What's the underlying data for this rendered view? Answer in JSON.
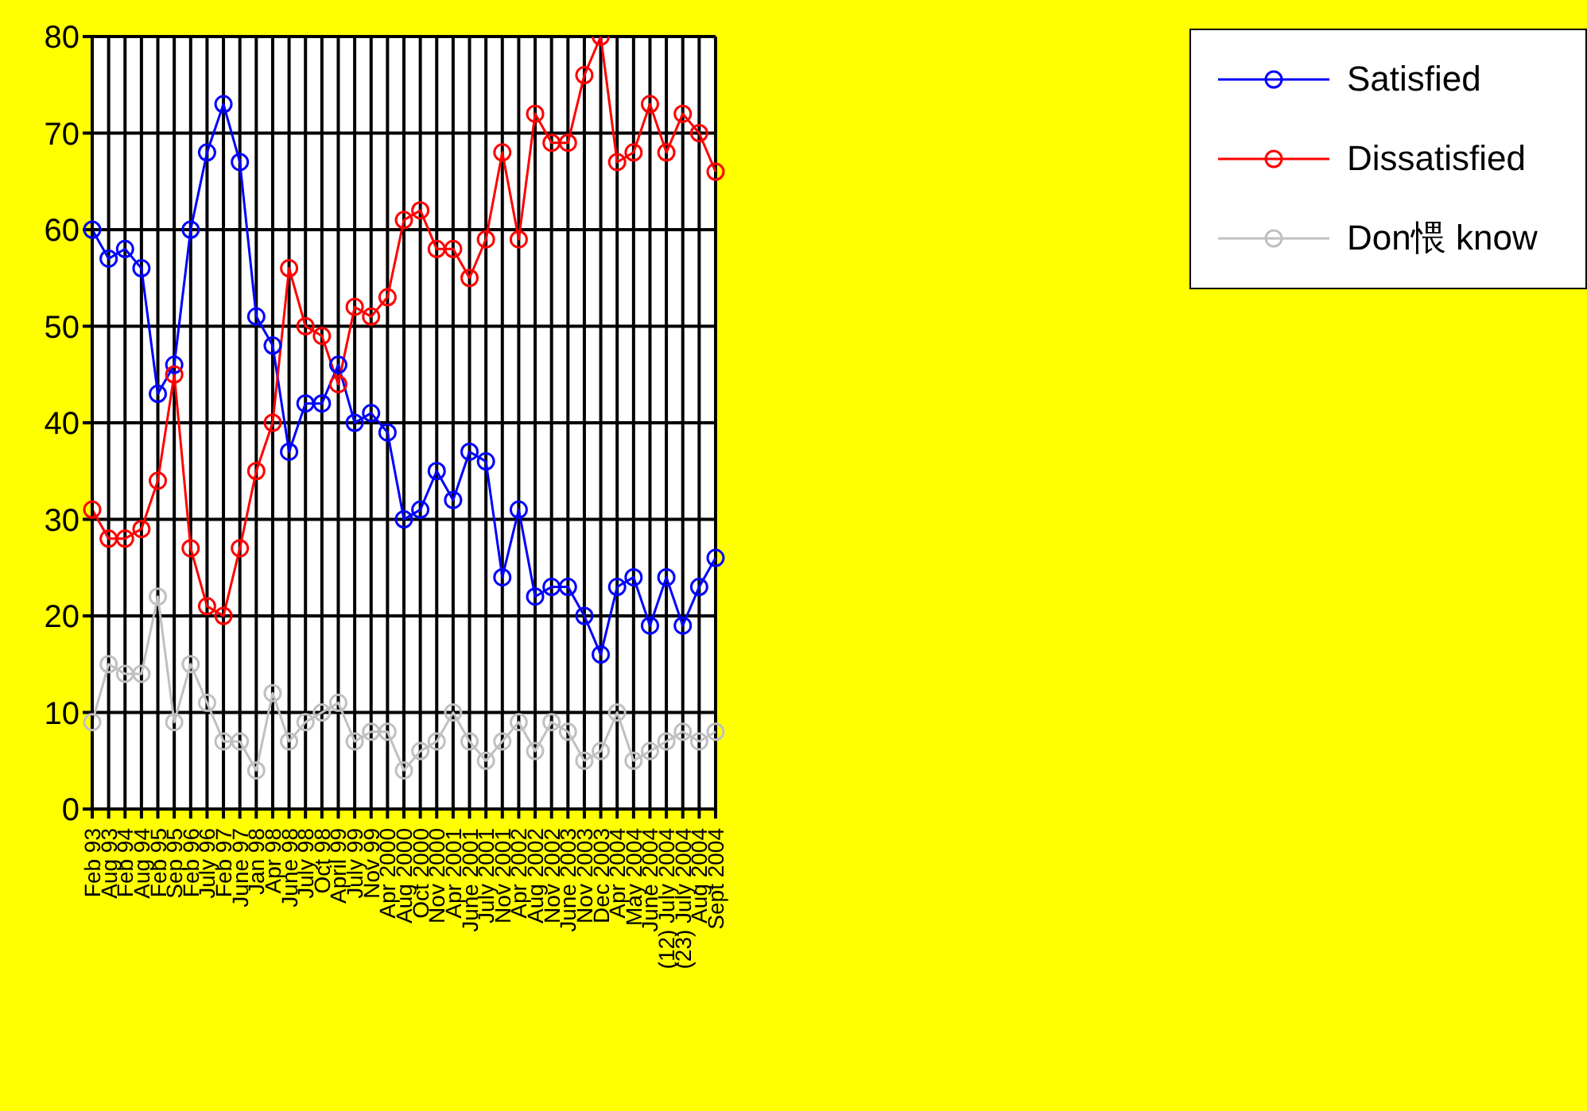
{
  "chart_data": {
    "type": "line",
    "categories": [
      "Feb 93",
      "Aug 93",
      "Feb 94",
      "Aug 94",
      "Feb 95",
      "Sep 95",
      "Feb 96",
      "July 96",
      "Feb 97",
      "June 97",
      "Jan 98",
      "Apr 98",
      "June 98",
      "July 98",
      "Oct 98",
      "April 99",
      "July 99",
      "Nov 99",
      "Apr 2000",
      "Aug 2000",
      "Oct 2000",
      "Nov 2000",
      "Apr 2001",
      "June 2001",
      "July 2001",
      "Nov 2001",
      "Apr 2002",
      "Aug 2002",
      "Nov 2002",
      "June 2003",
      "Nov 2003",
      "Dec 2003",
      "Apr 2004",
      "May 2004",
      "June 2004",
      "(12) July 2004",
      "(23) July 2004",
      "Aug 2004",
      "Sept 2004"
    ],
    "series": [
      {
        "name": "Satisfied",
        "color": "#0000ff",
        "values": [
          60,
          57,
          58,
          56,
          43,
          46,
          60,
          68,
          73,
          67,
          51,
          48,
          37,
          42,
          42,
          46,
          40,
          41,
          39,
          30,
          31,
          35,
          32,
          37,
          36,
          24,
          31,
          22,
          23,
          23,
          20,
          16,
          23,
          24,
          19,
          24,
          19,
          23,
          26
        ]
      },
      {
        "name": "Dissatisfied",
        "color": "#ff0000",
        "values": [
          31,
          28,
          28,
          29,
          34,
          45,
          27,
          21,
          20,
          27,
          35,
          40,
          56,
          50,
          49,
          44,
          52,
          51,
          53,
          61,
          62,
          58,
          58,
          55,
          59,
          68,
          59,
          72,
          69,
          69,
          76,
          80,
          67,
          68,
          73,
          68,
          72,
          70,
          66
        ]
      },
      {
        "name": "Don愄 know",
        "color": "#c0c0c0",
        "values": [
          9,
          15,
          14,
          14,
          22,
          9,
          15,
          11,
          7,
          7,
          4,
          12,
          7,
          9,
          10,
          11,
          7,
          8,
          8,
          4,
          6,
          7,
          10,
          7,
          5,
          7,
          9,
          6,
          9,
          8,
          5,
          6,
          10,
          5,
          6,
          7,
          8,
          7,
          8
        ]
      }
    ],
    "ylim": [
      0,
      80
    ],
    "yticks": [
      0,
      10,
      20,
      30,
      40,
      50,
      60,
      70,
      80
    ],
    "grid": true,
    "legend": "top right",
    "marker": "circle",
    "line_style": "solid"
  }
}
